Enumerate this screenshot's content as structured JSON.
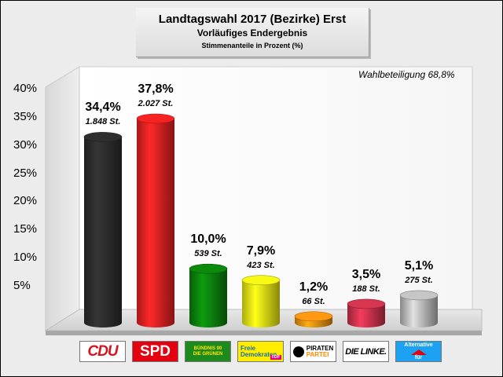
{
  "header": {
    "title": "Landtagswahl 2017 (Bezirke) Erst",
    "subtitle": "Vorläufiges Endergebnis",
    "subsubtitle": "Stimmenanteile in Prozent (%)"
  },
  "turnout_label": "Wahlbeteiligung 68,8%",
  "chart_data": {
    "type": "bar",
    "title": "Landtagswahl 2017 (Bezirke) Erst",
    "subtitle": "Vorläufiges Endergebnis",
    "ylabel": "",
    "xlabel": "",
    "ylim": [
      0,
      43
    ],
    "yticks": [
      5,
      10,
      15,
      20,
      25,
      30,
      35,
      40
    ],
    "ytick_labels": [
      "5%",
      "10%",
      "15%",
      "20%",
      "25%",
      "30%",
      "35%",
      "40%"
    ],
    "categories": [
      "CDU",
      "SPD",
      "GRÜNE",
      "FDP",
      "PIRATEN",
      "DIE LINKE",
      "AfD"
    ],
    "values": [
      34.4,
      37.8,
      10.0,
      7.9,
      1.2,
      3.5,
      5.1
    ],
    "value_labels": [
      "34,4%",
      "37,8%",
      "10,0%",
      "7,9%",
      "1,2%",
      "3,5%",
      "5,1%"
    ],
    "votes": [
      1848,
      2027,
      539,
      423,
      66,
      188,
      275
    ],
    "vote_labels": [
      "1.848 St.",
      "2.027 St.",
      "539 St.",
      "423 St.",
      "66 St.",
      "188 St.",
      "275 St."
    ],
    "colors": [
      "#2b2b2b",
      "#e02020",
      "#0b7d0b",
      "#e2e214",
      "#e88a10",
      "#c4304a",
      "#b4b4b4"
    ],
    "grid": false,
    "legend": "none"
  },
  "logos": [
    {
      "name": "cdu",
      "text": "CDU"
    },
    {
      "name": "spd",
      "text": "SPD"
    },
    {
      "name": "gruene",
      "line1": "BÜNDNIS 90",
      "line2": "DIE GRÜNEN"
    },
    {
      "name": "fdp",
      "line1": "Freie",
      "line2": "Demokraten",
      "tag": "FDP"
    },
    {
      "name": "piraten",
      "line1": "PIRATEN",
      "line2": "PARTEI"
    },
    {
      "name": "linke",
      "text": "DIE LINKE."
    },
    {
      "name": "afd",
      "line1": "Alternative",
      "line2": "für",
      "line3": "Deutschland"
    }
  ]
}
